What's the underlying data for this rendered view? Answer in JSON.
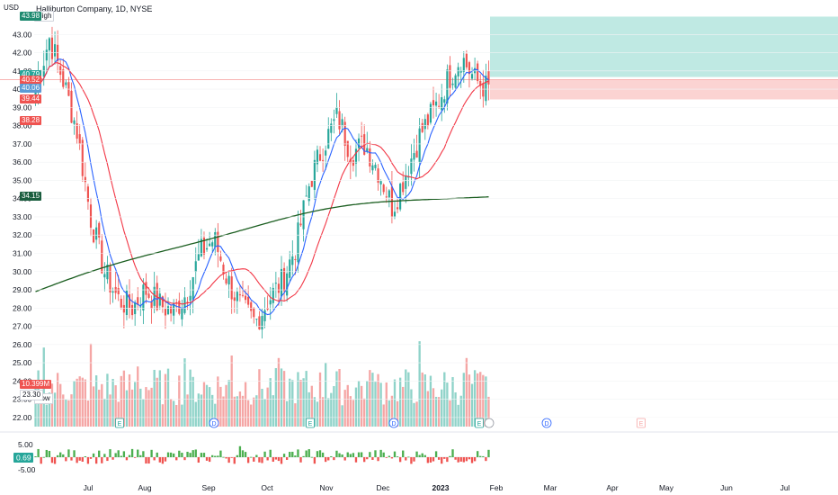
{
  "header": {
    "title": "Halliburton Company, 1D, NYSE",
    "currency": "USD",
    "high_label": "High",
    "low_label": "Low"
  },
  "price_axis": {
    "ticks": [
      "43.00",
      "42.00",
      "41.00",
      "40.00",
      "39.00",
      "38.00",
      "37.00",
      "36.00",
      "35.00",
      "34.00",
      "33.00",
      "32.00",
      "31.00",
      "30.00",
      "29.00",
      "28.00",
      "27.00",
      "26.00",
      "25.00",
      "24.00",
      "23.00",
      "22.00"
    ],
    "range": [
      21.5,
      44.2
    ]
  },
  "price_tags": [
    {
      "value": "43.98",
      "color": "#1f8a70",
      "price": 43.98
    },
    {
      "value": "40.79",
      "color": "#26a69a",
      "price": 40.79
    },
    {
      "value": "40.52",
      "color": "#ef5350",
      "price": 40.52
    },
    {
      "value": "40.06",
      "color": "#5b9bd5",
      "price": 40.06
    },
    {
      "value": "39.44",
      "color": "#ef5350",
      "price": 39.44
    },
    {
      "value": "38.28",
      "color": "#ef5350",
      "price": 38.28
    },
    {
      "value": "34.15",
      "color": "#1b5e3f",
      "price": 34.15
    },
    {
      "value": "10.399M",
      "color": "#ef5350",
      "price": 23.8
    },
    {
      "value": "23.30",
      "color": "#ffffff",
      "price": 23.3,
      "text_color": "#131722"
    }
  ],
  "time_axis": [
    "Jul",
    "Aug",
    "Sep",
    "Oct",
    "Nov",
    "Dec",
    "2023",
    "Feb",
    "Mar",
    "Apr",
    "May",
    "Jun",
    "Jul"
  ],
  "event_markers": [
    {
      "label": "E",
      "kind": "earnings"
    },
    {
      "label": "D",
      "kind": "dividend"
    },
    {
      "label": "E",
      "kind": "earnings"
    },
    {
      "label": "D",
      "kind": "dividend"
    },
    {
      "label": "E",
      "kind": "earnings"
    },
    {
      "label": "D",
      "kind": "dividend"
    },
    {
      "label": "E",
      "kind": "earnings"
    }
  ],
  "oscillator": {
    "ticks": [
      "5.00",
      "0.00",
      "-5.00"
    ],
    "value": "0.69",
    "value_color": "#26a69a"
  },
  "colors": {
    "up": "#26a69a",
    "down": "#ef5350",
    "ma_fast": "#2962ff",
    "ma_mid": "#f23645",
    "ma_slow": "#1b5e20",
    "target_zone": "#bfe9e3",
    "stop_zone": "#fbd3d2"
  },
  "chart_data": {
    "type": "candlestick",
    "symbol": "Halliburton Company, 1D, NYSE",
    "y_range": [
      21.5,
      44.2
    ],
    "ohlc_anchor_closes": [
      40.0,
      42.8,
      40.5,
      37.8,
      33.0,
      30.0,
      28.5,
      28.0,
      29.0,
      28.2,
      27.8,
      28.8,
      31.0,
      31.8,
      29.5,
      28.0,
      27.2,
      28.5,
      29.5,
      31.5,
      35.0,
      37.0,
      38.5,
      36.5,
      37.0,
      35.5,
      33.5,
      35.5,
      37.5,
      38.8,
      40.5,
      41.8,
      40.5,
      40.0
    ],
    "ma_slow_range": [
      28.9,
      34.15
    ],
    "last_values": {
      "close": 40.52,
      "ma_fast": 40.06,
      "ma_mid": 38.28,
      "ma_slow": 34.15,
      "high": 43.98,
      "low": 23.3,
      "volume": "10.399M"
    },
    "position_tool": {
      "entry": 40.52,
      "target": 43.98,
      "stop": 39.44
    }
  }
}
